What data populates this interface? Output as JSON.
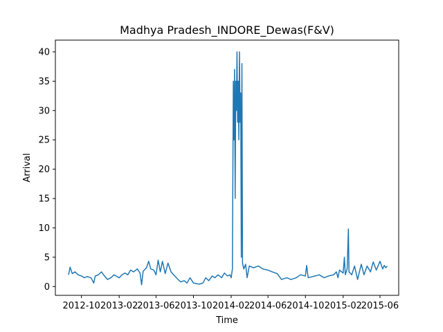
{
  "chart_data": {
    "type": "line",
    "title": "Madhya Pradesh_INDORE_Dewas(F&V)",
    "xlabel": "Time",
    "ylabel": "Arrival",
    "xlim": [
      "2012-07-08",
      "2015-08-01"
    ],
    "ylim": [
      -1.5,
      42
    ],
    "x_ticks": [
      {
        "date": "2012-10-01",
        "label": "2012-10"
      },
      {
        "date": "2013-02-01",
        "label": "2013-02"
      },
      {
        "date": "2013-06-01",
        "label": "2013-06"
      },
      {
        "date": "2013-10-01",
        "label": "2013-10"
      },
      {
        "date": "2014-02-01",
        "label": "2014-02"
      },
      {
        "date": "2014-06-01",
        "label": "2014-06"
      },
      {
        "date": "2014-10-01",
        "label": "2014-10"
      },
      {
        "date": "2015-02-01",
        "label": "2015-02"
      },
      {
        "date": "2015-06-01",
        "label": "2015-06"
      }
    ],
    "y_ticks": [
      0,
      5,
      10,
      15,
      20,
      25,
      30,
      35,
      40
    ],
    "grid": false,
    "color": "#1f77b4",
    "series": [
      {
        "name": "",
        "points": [
          [
            "2012-08-20",
            2.0
          ],
          [
            "2012-08-25",
            3.3
          ],
          [
            "2012-09-01",
            2.2
          ],
          [
            "2012-09-10",
            2.5
          ],
          [
            "2012-09-20",
            2.0
          ],
          [
            "2012-10-01",
            1.8
          ],
          [
            "2012-10-10",
            1.5
          ],
          [
            "2012-10-20",
            1.7
          ],
          [
            "2012-11-01",
            1.5
          ],
          [
            "2012-11-10",
            0.6
          ],
          [
            "2012-11-15",
            1.8
          ],
          [
            "2012-11-25",
            2.0
          ],
          [
            "2012-12-05",
            2.5
          ],
          [
            "2012-12-15",
            1.8
          ],
          [
            "2012-12-25",
            1.2
          ],
          [
            "2013-01-05",
            1.5
          ],
          [
            "2013-01-15",
            2.0
          ],
          [
            "2013-01-25",
            1.7
          ],
          [
            "2013-02-01",
            1.5
          ],
          [
            "2013-02-10",
            2.0
          ],
          [
            "2013-02-20",
            2.3
          ],
          [
            "2013-03-01",
            2.0
          ],
          [
            "2013-03-10",
            2.8
          ],
          [
            "2013-03-20",
            2.5
          ],
          [
            "2013-04-01",
            3.0
          ],
          [
            "2013-04-10",
            2.3
          ],
          [
            "2013-04-15",
            0.3
          ],
          [
            "2013-04-20",
            2.6
          ],
          [
            "2013-05-01",
            3.2
          ],
          [
            "2013-05-08",
            4.3
          ],
          [
            "2013-05-15",
            3.0
          ],
          [
            "2013-05-25",
            2.8
          ],
          [
            "2013-06-01",
            2.0
          ],
          [
            "2013-06-08",
            4.5
          ],
          [
            "2013-06-15",
            2.5
          ],
          [
            "2013-06-22",
            4.3
          ],
          [
            "2013-07-01",
            2.2
          ],
          [
            "2013-07-10",
            4.0
          ],
          [
            "2013-07-20",
            2.5
          ],
          [
            "2013-08-01",
            1.8
          ],
          [
            "2013-08-10",
            1.3
          ],
          [
            "2013-08-20",
            0.8
          ],
          [
            "2013-09-01",
            1.0
          ],
          [
            "2013-09-10",
            0.6
          ],
          [
            "2013-09-20",
            1.5
          ],
          [
            "2013-10-01",
            0.6
          ],
          [
            "2013-10-10",
            0.5
          ],
          [
            "2013-10-20",
            0.4
          ],
          [
            "2013-11-01",
            0.6
          ],
          [
            "2013-11-10",
            1.5
          ],
          [
            "2013-11-20",
            1.0
          ],
          [
            "2013-12-01",
            1.8
          ],
          [
            "2013-12-10",
            1.5
          ],
          [
            "2013-12-20",
            2.0
          ],
          [
            "2014-01-01",
            1.5
          ],
          [
            "2014-01-10",
            2.3
          ],
          [
            "2014-01-20",
            1.8
          ],
          [
            "2014-01-28",
            2.0
          ],
          [
            "2014-02-01",
            1.5
          ],
          [
            "2014-02-05",
            3.0
          ],
          [
            "2014-02-08",
            35.0
          ],
          [
            "2014-02-10",
            25.0
          ],
          [
            "2014-02-12",
            37.0
          ],
          [
            "2014-02-14",
            15.0
          ],
          [
            "2014-02-16",
            35.0
          ],
          [
            "2014-02-18",
            30.0
          ],
          [
            "2014-02-20",
            40.0
          ],
          [
            "2014-02-22",
            28.0
          ],
          [
            "2014-02-24",
            35.0
          ],
          [
            "2014-02-26",
            25.0
          ],
          [
            "2014-02-28",
            40.0
          ],
          [
            "2014-03-02",
            28.0
          ],
          [
            "2014-03-04",
            33.0
          ],
          [
            "2014-03-06",
            5.0
          ],
          [
            "2014-03-08",
            38.0
          ],
          [
            "2014-03-10",
            4.0
          ],
          [
            "2014-03-14",
            3.0
          ],
          [
            "2014-03-20",
            3.8
          ],
          [
            "2014-03-25",
            1.5
          ],
          [
            "2014-04-01",
            3.5
          ],
          [
            "2014-04-15",
            3.2
          ],
          [
            "2014-05-01",
            3.5
          ],
          [
            "2014-05-15",
            3.0
          ],
          [
            "2014-06-01",
            2.8
          ],
          [
            "2014-06-15",
            2.5
          ],
          [
            "2014-07-01",
            2.2
          ],
          [
            "2014-07-15",
            1.2
          ],
          [
            "2014-08-01",
            1.5
          ],
          [
            "2014-08-15",
            1.2
          ],
          [
            "2014-09-01",
            1.5
          ],
          [
            "2014-09-15",
            2.0
          ],
          [
            "2014-10-01",
            1.8
          ],
          [
            "2014-10-05",
            3.6
          ],
          [
            "2014-10-10",
            1.5
          ],
          [
            "2014-11-01",
            1.8
          ],
          [
            "2014-11-15",
            2.0
          ],
          [
            "2014-12-01",
            1.5
          ],
          [
            "2014-12-15",
            1.8
          ],
          [
            "2015-01-01",
            2.0
          ],
          [
            "2015-01-10",
            2.5
          ],
          [
            "2015-01-15",
            1.5
          ],
          [
            "2015-01-20",
            2.8
          ],
          [
            "2015-02-01",
            2.3
          ],
          [
            "2015-02-05",
            5.0
          ],
          [
            "2015-02-08",
            2.0
          ],
          [
            "2015-02-14",
            3.0
          ],
          [
            "2015-02-18",
            9.8
          ],
          [
            "2015-02-20",
            2.5
          ],
          [
            "2015-03-01",
            2.0
          ],
          [
            "2015-03-10",
            3.5
          ],
          [
            "2015-03-20",
            1.2
          ],
          [
            "2015-04-01",
            3.8
          ],
          [
            "2015-04-10",
            2.0
          ],
          [
            "2015-04-20",
            3.5
          ],
          [
            "2015-05-01",
            2.5
          ],
          [
            "2015-05-10",
            4.2
          ],
          [
            "2015-05-20",
            2.8
          ],
          [
            "2015-06-01",
            4.3
          ],
          [
            "2015-06-10",
            3.0
          ],
          [
            "2015-06-15",
            3.6
          ],
          [
            "2015-06-20",
            3.2
          ],
          [
            "2015-06-25",
            3.5
          ]
        ]
      }
    ]
  }
}
